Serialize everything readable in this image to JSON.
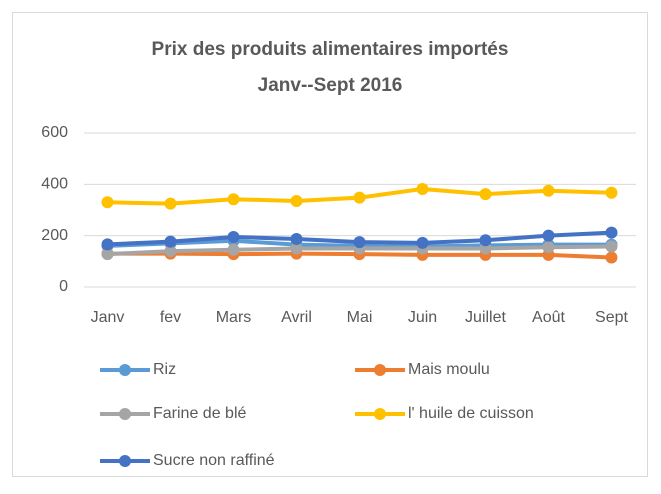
{
  "chart_data": {
    "type": "line",
    "title": [
      "Prix des produits alimentaires  importés",
      "Janv--Sept 2016"
    ],
    "categories": [
      "Janv",
      "fev",
      "Mars",
      "Avril",
      "Mai",
      "Juin",
      "Juillet",
      "Août",
      "Sept"
    ],
    "series": [
      {
        "name": "Riz",
        "color": "#5b9bd5",
        "values": [
          160,
          170,
          180,
          165,
          160,
          158,
          162,
          165,
          165
        ]
      },
      {
        "name": "Mais moulu",
        "color": "#ed7d31",
        "values": [
          130,
          130,
          128,
          130,
          128,
          125,
          125,
          125,
          115
        ]
      },
      {
        "name": "Farine de blé",
        "color": "#a5a5a5",
        "values": [
          128,
          140,
          145,
          150,
          150,
          150,
          150,
          155,
          158
        ]
      },
      {
        "name": "l' huile de cuisson",
        "color": "#ffc000",
        "values": [
          330,
          325,
          342,
          335,
          348,
          382,
          362,
          375,
          367
        ]
      },
      {
        "name": "Sucre non raffiné",
        "color": "#4472c4",
        "values": [
          166,
          177,
          195,
          187,
          175,
          172,
          182,
          200,
          212
        ]
      }
    ],
    "ylim": [
      0,
      600
    ],
    "yticks": [
      0,
      200,
      400,
      600
    ],
    "grid": true,
    "legend": "bottom"
  }
}
